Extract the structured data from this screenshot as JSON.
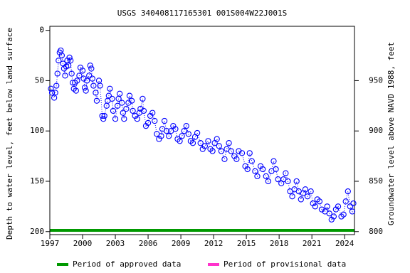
{
  "chart_data": {
    "type": "scatter",
    "title": "USGS 340408117165301 001S004W22J001S",
    "ylabel": "Depth to water level, feet below land surface",
    "y2label": "Groundwater level above NAVD 1988, feet",
    "color": "#0000ff",
    "x": [
      1997.1,
      1997.2,
      1997.4,
      1997.5,
      1997.6,
      1997.7,
      1997.8,
      1997.9,
      1998.0,
      1998.1,
      1998.2,
      1998.3,
      1998.4,
      1998.5,
      1998.6,
      1998.7,
      1998.8,
      1998.9,
      1999.0,
      1999.1,
      1999.2,
      1999.3,
      1999.4,
      1999.5,
      1999.7,
      1999.8,
      2000.0,
      2000.1,
      2000.2,
      2000.3,
      2000.4,
      2000.6,
      2000.7,
      2000.8,
      2000.9,
      2001.0,
      2001.2,
      2001.3,
      2001.5,
      2001.6,
      2001.8,
      2001.9,
      2002.0,
      2002.2,
      2002.3,
      2002.4,
      2002.5,
      2002.7,
      2002.8,
      2003.0,
      2003.2,
      2003.3,
      2003.4,
      2003.6,
      2003.7,
      2003.8,
      2004.0,
      2004.2,
      2004.3,
      2004.5,
      2004.6,
      2004.8,
      2005.0,
      2005.2,
      2005.3,
      2005.5,
      2005.6,
      2005.8,
      2006.0,
      2006.2,
      2006.4,
      2006.6,
      2006.8,
      2007.0,
      2007.2,
      2007.3,
      2007.5,
      2007.7,
      2007.9,
      2008.1,
      2008.3,
      2008.5,
      2008.7,
      2008.9,
      2009.1,
      2009.3,
      2009.5,
      2009.7,
      2009.9,
      2010.1,
      2010.3,
      2010.5,
      2010.8,
      2011.0,
      2011.2,
      2011.5,
      2011.7,
      2011.9,
      2012.1,
      2012.3,
      2012.5,
      2012.7,
      2013.0,
      2013.2,
      2013.4,
      2013.6,
      2013.9,
      2014.1,
      2014.3,
      2014.6,
      2014.9,
      2015.1,
      2015.3,
      2015.5,
      2015.8,
      2016.0,
      2016.3,
      2016.5,
      2016.8,
      2017.0,
      2017.3,
      2017.5,
      2017.7,
      2017.9,
      2018.2,
      2018.4,
      2018.6,
      2018.8,
      2019.0,
      2019.2,
      2019.4,
      2019.6,
      2019.8,
      2020.0,
      2020.2,
      2020.4,
      2020.6,
      2020.9,
      2021.1,
      2021.3,
      2021.5,
      2021.7,
      2021.9,
      2022.2,
      2022.4,
      2022.6,
      2022.8,
      2023.0,
      2023.2,
      2023.4,
      2023.7,
      2023.9,
      2024.1,
      2024.3,
      2024.5,
      2024.7,
      2024.8
    ],
    "values": [
      58,
      62,
      67,
      62,
      55,
      43,
      30,
      22,
      20,
      25,
      33,
      38,
      45,
      36,
      30,
      35,
      27,
      30,
      43,
      52,
      58,
      52,
      60,
      50,
      45,
      37,
      40,
      48,
      57,
      60,
      50,
      45,
      35,
      38,
      48,
      55,
      62,
      70,
      50,
      55,
      85,
      88,
      85,
      75,
      70,
      65,
      58,
      68,
      80,
      88,
      75,
      68,
      63,
      72,
      82,
      88,
      78,
      72,
      65,
      70,
      80,
      85,
      88,
      82,
      78,
      68,
      80,
      95,
      92,
      85,
      82,
      90,
      103,
      108,
      105,
      98,
      90,
      100,
      105,
      100,
      95,
      98,
      108,
      110,
      105,
      100,
      95,
      103,
      110,
      112,
      106,
      102,
      112,
      118,
      115,
      110,
      118,
      120,
      112,
      108,
      115,
      120,
      128,
      118,
      112,
      120,
      125,
      128,
      120,
      122,
      135,
      138,
      122,
      130,
      140,
      145,
      135,
      138,
      145,
      150,
      140,
      130,
      138,
      148,
      152,
      148,
      142,
      150,
      160,
      165,
      158,
      150,
      160,
      168,
      162,
      158,
      165,
      160,
      172,
      175,
      168,
      170,
      178,
      180,
      175,
      182,
      188,
      185,
      178,
      175,
      185,
      183,
      170,
      160,
      175,
      180,
      172
    ],
    "xlim": [
      1997,
      2024.9
    ],
    "xticks": [
      1997,
      2000,
      2003,
      2006,
      2009,
      2012,
      2015,
      2018,
      2021,
      2024
    ],
    "ylim": [
      -4,
      203
    ],
    "yticks": [
      0,
      50,
      100,
      150,
      200
    ],
    "y2lim": [
      1004,
      797
    ],
    "y2ticks": [
      800,
      850,
      900,
      950
    ],
    "legend": [
      {
        "label": "Period of approved data",
        "color": "#009900"
      },
      {
        "label": "Period of provisional data",
        "color": "#ff33cc"
      }
    ]
  }
}
